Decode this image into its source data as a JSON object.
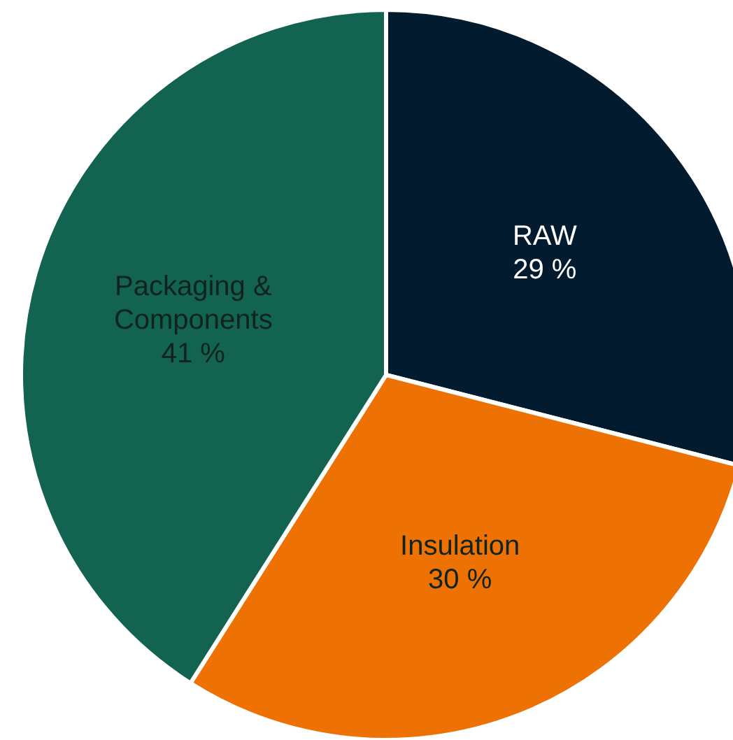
{
  "chart_data": {
    "type": "pie",
    "categories": [
      "RAW",
      "Insulation",
      "Packaging & Components"
    ],
    "values": [
      29,
      30,
      41
    ],
    "colors": [
      "#021b2e",
      "#ee7203",
      "#126450"
    ],
    "value_labels": [
      "29 %",
      "30 %",
      "41 %"
    ]
  }
}
